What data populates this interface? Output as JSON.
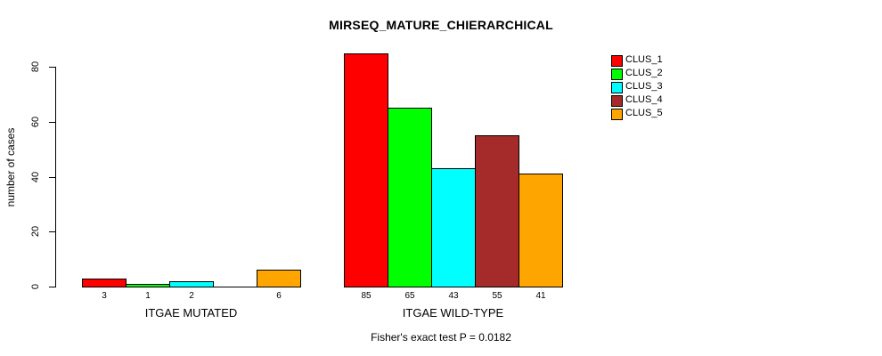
{
  "chart_data": {
    "type": "bar",
    "title": "MIRSEQ_MATURE_CHIERARCHICAL",
    "ylabel": "number of cases",
    "xlabel": "",
    "ylim": [
      0,
      80
    ],
    "yticks": [
      0,
      20,
      40,
      60,
      80
    ],
    "grid": false,
    "legend_position": "top-right",
    "bar_value_labels": true,
    "series": [
      {
        "name": "CLUS_1",
        "color": "#FF0000"
      },
      {
        "name": "CLUS_2",
        "color": "#00FF00"
      },
      {
        "name": "CLUS_3",
        "color": "#00FFFF"
      },
      {
        "name": "CLUS_4",
        "color": "#A52A2A"
      },
      {
        "name": "CLUS_5",
        "color": "#FFA500"
      }
    ],
    "groups": [
      {
        "label": "ITGAE MUTATED",
        "values": [
          3,
          1,
          2,
          0,
          6
        ]
      },
      {
        "label": "ITGAE WILD-TYPE",
        "values": [
          85,
          65,
          43,
          55,
          41
        ]
      }
    ],
    "annotation": "Fisher's exact test P = 0.0182"
  }
}
